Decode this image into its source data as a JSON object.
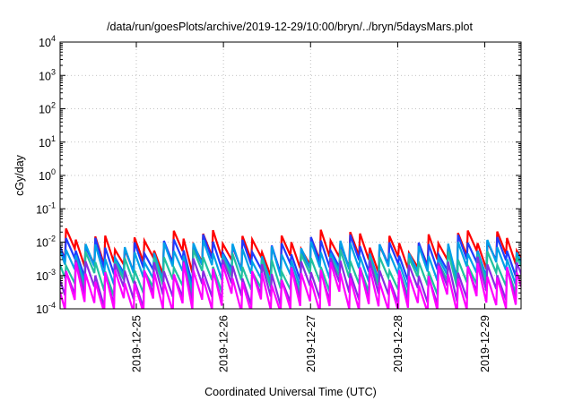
{
  "chart_data": {
    "type": "line",
    "title": "/data/run/goesPlots/archive/2019-12-29/10:00/bryn/../bryn/5daysMars.plot",
    "xlabel": "Coordinated Universal Time (UTC)",
    "ylabel": "cGy/day",
    "xlim": [
      "2019-12-24T03:00",
      "2019-12-29T10:00"
    ],
    "ylim": [
      0.0001,
      10000
    ],
    "yscale": "log",
    "grid": true,
    "x_ticks": [
      {
        "x": "2019-12-25T00:00",
        "label": "2019-12-25"
      },
      {
        "x": "2019-12-26T00:00",
        "label": "2019-12-26"
      },
      {
        "x": "2019-12-27T00:00",
        "label": "2019-12-27"
      },
      {
        "x": "2019-12-28T00:00",
        "label": "2019-12-28"
      },
      {
        "x": "2019-12-29T00:00",
        "label": "2019-12-29"
      }
    ],
    "y_ticks": [
      {
        "value": 0.0001,
        "base": "10",
        "exp": "-4"
      },
      {
        "value": 0.001,
        "base": "10",
        "exp": "-3"
      },
      {
        "value": 0.01,
        "base": "10",
        "exp": "-2"
      },
      {
        "value": 0.1,
        "base": "10",
        "exp": "-1"
      },
      {
        "value": 1,
        "base": "10",
        "exp": "0"
      },
      {
        "value": 10,
        "base": "10",
        "exp": "1"
      },
      {
        "value": 100,
        "base": "10",
        "exp": "2"
      },
      {
        "value": 1000,
        "base": "10",
        "exp": "3"
      },
      {
        "value": 10000,
        "base": "10",
        "exp": "4"
      }
    ],
    "pulse_period_hours": 2.7,
    "series": [
      {
        "color": "#ff0000",
        "peak": 0.011,
        "trough": 0.0025
      },
      {
        "color": "#1f3bff",
        "peak": 0.0075,
        "trough": 0.0016
      },
      {
        "color": "#00a0e8",
        "peak": 0.0055,
        "trough": 0.0011
      },
      {
        "color": "#20c0a0",
        "peak": 0.0026,
        "trough": 0.00055
      },
      {
        "color": "#8a2be2",
        "peak": 0.0016,
        "trough": 0.00025
      },
      {
        "color": "#ff00ff",
        "peak": 0.0011,
        "trough": 0.00012
      }
    ]
  }
}
